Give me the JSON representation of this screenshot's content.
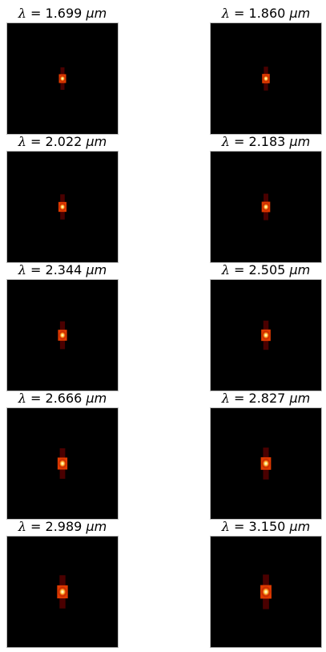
{
  "panels": [
    {
      "label": "λ",
      "equals": "=",
      "value": "1.699",
      "unit": "μm"
    },
    {
      "label": "λ",
      "equals": "=",
      "value": "1.860",
      "unit": "μm"
    },
    {
      "label": "λ",
      "equals": "=",
      "value": "2.022",
      "unit": "μm"
    },
    {
      "label": "λ",
      "equals": "=",
      "value": "2.183",
      "unit": "μm"
    },
    {
      "label": "λ",
      "equals": "=",
      "value": "2.344",
      "unit": "μm"
    },
    {
      "label": "λ",
      "equals": "=",
      "value": "2.505",
      "unit": "μm"
    },
    {
      "label": "λ",
      "equals": "=",
      "value": "2.666",
      "unit": "μm"
    },
    {
      "label": "λ",
      "equals": "=",
      "value": "2.827",
      "unit": "μm"
    },
    {
      "label": "λ",
      "equals": "=",
      "value": "2.989",
      "unit": "μm"
    },
    {
      "label": "λ",
      "equals": "=",
      "value": "3.150",
      "unit": "μm"
    }
  ],
  "colors": {
    "background": "#000000",
    "core": "#ffffff",
    "inner": "#ffd24a",
    "mid": "#e03a00",
    "outer": "#6a0000",
    "frame_border": "#bdbdbd"
  }
}
